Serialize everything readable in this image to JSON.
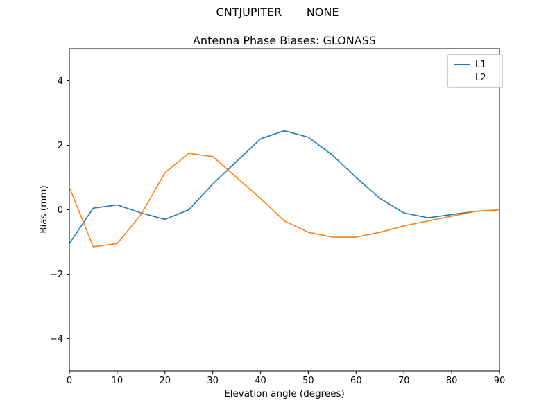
{
  "figure": {
    "suptitle": "CNTJUPITER       NONE"
  },
  "chart_data": {
    "type": "line",
    "title": "Antenna Phase Biases: GLONASS",
    "xlabel": "Elevation angle (degrees)",
    "ylabel": "Bias (mm)",
    "xlim": [
      0,
      90
    ],
    "ylim": [
      -5,
      5
    ],
    "xticks": [
      0,
      10,
      20,
      30,
      40,
      50,
      60,
      70,
      80,
      90
    ],
    "xtick_labels": [
      "0",
      "10",
      "20",
      "30",
      "40",
      "50",
      "60",
      "70",
      "80",
      "90"
    ],
    "yticks": [
      -4,
      -2,
      0,
      2,
      4
    ],
    "ytick_labels": [
      "−4",
      "−2",
      "0",
      "2",
      "4"
    ],
    "grid": false,
    "legend_position": "upper right",
    "x": [
      0,
      5,
      10,
      15,
      20,
      25,
      30,
      35,
      40,
      45,
      50,
      55,
      60,
      65,
      70,
      75,
      80,
      85,
      90
    ],
    "series": [
      {
        "name": "L1",
        "color": "#1f77b4",
        "values": [
          -1.05,
          0.05,
          0.15,
          -0.1,
          -0.3,
          0.0,
          0.8,
          1.5,
          2.2,
          2.45,
          2.25,
          1.7,
          1.0,
          0.35,
          -0.1,
          -0.25,
          -0.15,
          -0.05,
          0.0
        ]
      },
      {
        "name": "L2",
        "color": "#ff7f0e",
        "values": [
          0.7,
          -1.15,
          -1.05,
          -0.15,
          1.15,
          1.75,
          1.65,
          1.0,
          0.35,
          -0.35,
          -0.7,
          -0.85,
          -0.85,
          -0.7,
          -0.5,
          -0.35,
          -0.2,
          -0.05,
          0.0
        ]
      }
    ]
  }
}
